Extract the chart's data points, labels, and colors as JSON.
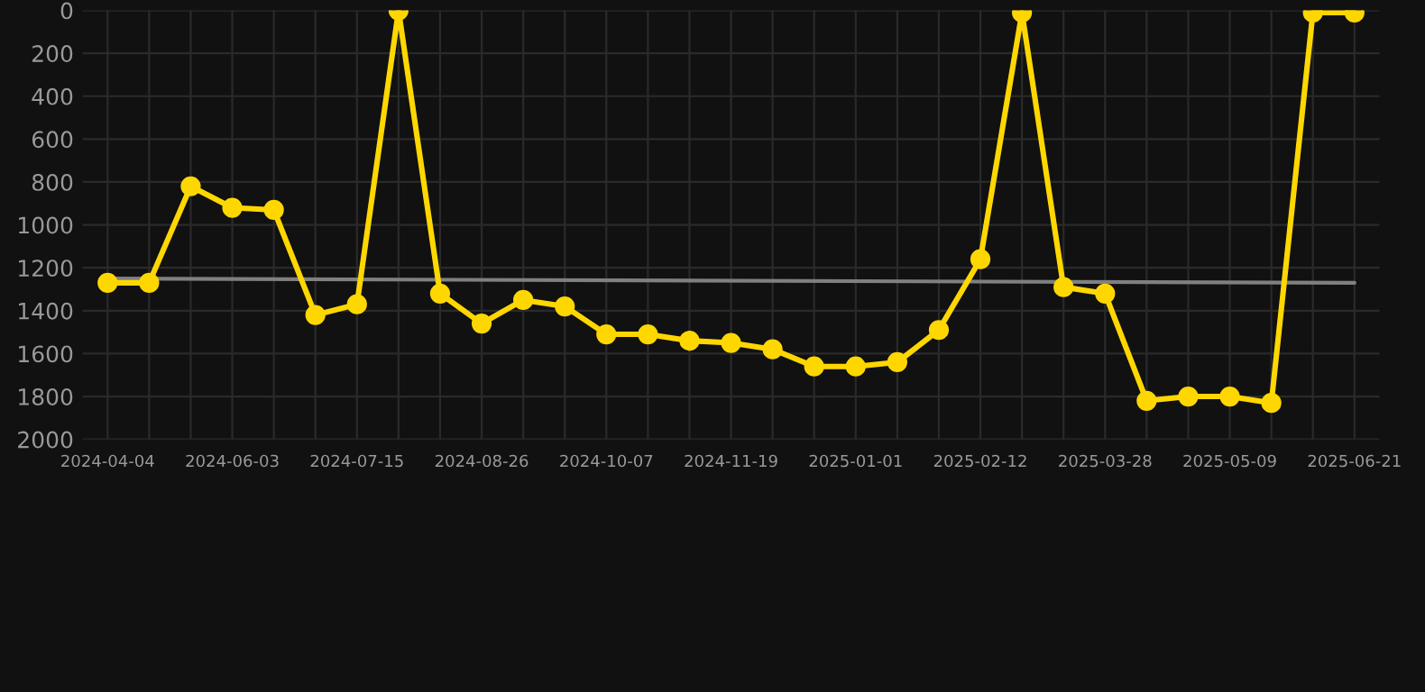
{
  "chart_data": {
    "type": "line",
    "categories": [
      "2024-04-04",
      null,
      null,
      "2024-06-03",
      null,
      null,
      "2024-07-15",
      null,
      null,
      "2024-08-26",
      null,
      null,
      "2024-10-07",
      null,
      null,
      "2024-11-19",
      null,
      null,
      "2025-01-01",
      null,
      null,
      "2025-02-12",
      null,
      null,
      "2025-03-28",
      null,
      null,
      "2025-05-09",
      null,
      null,
      "2025-06-21"
    ],
    "series": [
      {
        "color": "#ffd700",
        "marker": "circle",
        "values": [
          1270,
          1270,
          820,
          920,
          930,
          1420,
          1370,
          0,
          1320,
          1460,
          1350,
          1380,
          1510,
          1510,
          1540,
          1550,
          1580,
          1660,
          1660,
          1640,
          1490,
          1160,
          10,
          1290,
          1320,
          1820,
          1800,
          1800,
          1830,
          10,
          10
        ]
      },
      {
        "type": "line",
        "color": "#808080",
        "marker": "none",
        "values": [
          1250,
          null,
          null,
          null,
          null,
          null,
          null,
          null,
          null,
          null,
          null,
          null,
          null,
          null,
          null,
          null,
          null,
          null,
          null,
          null,
          null,
          null,
          null,
          null,
          null,
          null,
          null,
          null,
          null,
          null,
          1270
        ]
      }
    ],
    "ylim": [
      2000,
      0
    ],
    "yticks": [
      0,
      200,
      400,
      600,
      800,
      1000,
      1200,
      1400,
      1600,
      1800,
      2000
    ],
    "grid": true
  }
}
